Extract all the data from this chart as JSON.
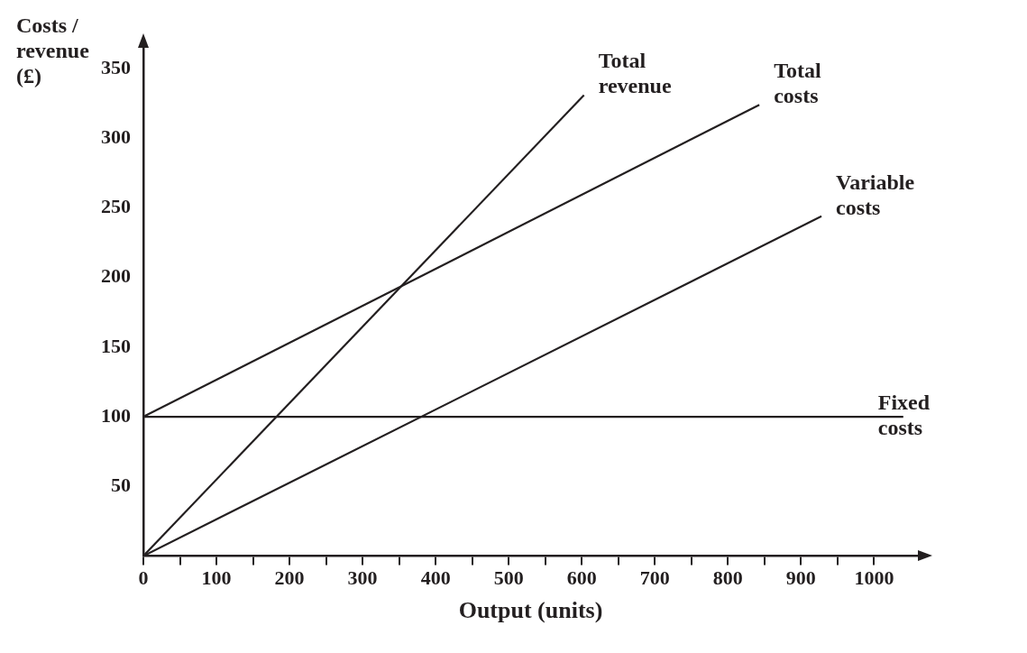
{
  "chart_data": {
    "type": "line",
    "xlabel": "Output (units)",
    "ylabel": "Costs / revenue (£)",
    "xlim": [
      0,
      1060
    ],
    "ylim": [
      0,
      365
    ],
    "xticks": [
      0,
      {
        "value": 50,
        "label": null
      },
      100,
      {
        "value": 150,
        "label": null
      },
      200,
      {
        "value": 250,
        "label": null
      },
      300,
      {
        "value": 350,
        "label": null
      },
      400,
      {
        "value": 450,
        "label": null
      },
      500,
      {
        "value": 550,
        "label": null
      },
      600,
      {
        "value": 650,
        "label": null
      },
      700,
      {
        "value": 750,
        "label": null
      },
      800,
      {
        "value": 850,
        "label": null
      },
      900,
      {
        "value": 950,
        "label": null
      },
      1000
    ],
    "yticks": [
      50,
      100,
      150,
      200,
      250,
      300,
      350
    ],
    "series": [
      {
        "name": "Total revenue",
        "color": "#231f20",
        "x": [
          0,
          603
        ],
        "values": [
          0,
          331
        ]
      },
      {
        "name": "Total costs",
        "color": "#231f20",
        "x": [
          0,
          843
        ],
        "values": [
          100,
          324
        ]
      },
      {
        "name": "Variable costs",
        "color": "#231f20",
        "x": [
          0,
          928
        ],
        "values": [
          0,
          244
        ]
      },
      {
        "name": "Fixed costs",
        "color": "#231f20",
        "x": [
          0,
          1040
        ],
        "values": [
          100,
          100
        ]
      }
    ],
    "grid": false,
    "legend": false,
    "marker": "none",
    "line_style": "solid"
  }
}
